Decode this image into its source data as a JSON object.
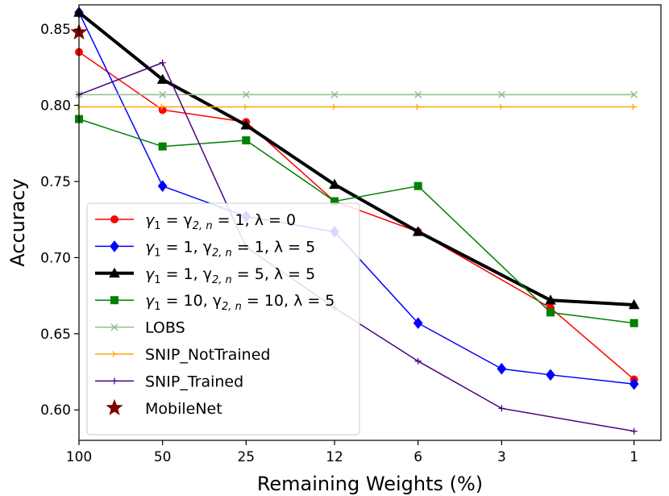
{
  "chart_data": {
    "type": "line",
    "title": "",
    "xlabel": "Remaining Weights (%)",
    "ylabel": "Accuracy",
    "x_scale": "log",
    "x_reversed": true,
    "xlim": [
      0.8,
      100
    ],
    "ylim": [
      0.58,
      0.866
    ],
    "x_ticks": [
      100,
      50,
      25,
      12,
      6,
      3,
      1
    ],
    "x_tick_labels": [
      "100",
      "50",
      "25",
      "12",
      "6",
      "3",
      "1"
    ],
    "y_ticks": [
      0.6,
      0.65,
      0.7,
      0.75,
      0.8,
      0.85
    ],
    "y_tick_labels": [
      "0.60",
      "0.65",
      "0.70",
      "0.75",
      "0.80",
      "0.85"
    ],
    "grid": false,
    "legend_position": "lower-left",
    "series": [
      {
        "name": "γ1 = γ2,n = 1, λ = 0",
        "color": "#ff0000",
        "marker": "circle",
        "line_width": 1.5,
        "x": [
          100,
          50,
          25,
          12,
          6,
          2,
          1
        ],
        "y": [
          0.835,
          0.797,
          0.789,
          0.737,
          0.717,
          0.667,
          0.62
        ]
      },
      {
        "name": "γ1 = 1, γ2,n = 1, λ = 5",
        "color": "#0000ff",
        "marker": "diamond",
        "line_width": 1.5,
        "x": [
          100,
          50,
          25,
          12,
          6,
          3,
          2,
          1
        ],
        "y": [
          0.861,
          0.747,
          0.727,
          0.717,
          0.657,
          0.627,
          0.623,
          0.617
        ]
      },
      {
        "name": "γ1 = 1, γ2,n = 5, λ = 5",
        "color": "#000000",
        "marker": "triangle",
        "line_width": 4,
        "x": [
          100,
          50,
          25,
          12,
          6,
          2,
          1
        ],
        "y": [
          0.861,
          0.817,
          0.787,
          0.748,
          0.717,
          0.672,
          0.669
        ]
      },
      {
        "name": "γ1 = 10, γ2,n = 10, λ = 5",
        "color": "#008000",
        "marker": "square",
        "line_width": 1.5,
        "x": [
          100,
          50,
          25,
          12,
          6,
          2,
          1
        ],
        "y": [
          0.791,
          0.773,
          0.777,
          0.737,
          0.747,
          0.664,
          0.657
        ]
      },
      {
        "name": "LOBS",
        "color": "#8fbc8f",
        "marker": "x",
        "line_width": 1.5,
        "x": [
          100,
          50,
          25,
          12,
          6,
          3,
          1
        ],
        "y": [
          0.807,
          0.807,
          0.807,
          0.807,
          0.807,
          0.807,
          0.807
        ]
      },
      {
        "name": "SNIP_NotTrained",
        "color": "#ffa500",
        "marker": "tri-right",
        "line_width": 1.5,
        "x": [
          100,
          50,
          25,
          12,
          6,
          3,
          1
        ],
        "y": [
          0.799,
          0.799,
          0.799,
          0.799,
          0.799,
          0.799,
          0.799
        ]
      },
      {
        "name": "SNIP_Trained",
        "color": "#4b0082",
        "marker": "plus",
        "line_width": 1.5,
        "x": [
          100,
          50,
          25,
          12,
          6,
          3,
          1
        ],
        "y": [
          0.807,
          0.828,
          0.707,
          0.667,
          0.632,
          0.601,
          0.586
        ]
      },
      {
        "name": "MobileNet",
        "color": "#800000",
        "marker": "star",
        "line_width": 0,
        "x": [
          100
        ],
        "y": [
          0.848
        ]
      }
    ]
  },
  "legend_items": [
    {
      "pre": "γ",
      "sub1": "1",
      "mid1": " = γ",
      "sub2": "2, n",
      "post": " = 1, λ = 0"
    },
    {
      "pre": "γ",
      "sub1": "1",
      "mid1": " = 1, γ",
      "sub2": "2, n",
      "post": " = 1, λ = 5"
    },
    {
      "pre": "γ",
      "sub1": "1",
      "mid1": " = 1, γ",
      "sub2": "2, n",
      "post": " = 5, λ = 5"
    },
    {
      "pre": "γ",
      "sub1": "1",
      "mid1": " = 10, γ",
      "sub2": "2, n",
      "post": " = 10, λ = 5"
    },
    {
      "text": "LOBS"
    },
    {
      "text": "SNIP_NotTrained"
    },
    {
      "text": "SNIP_Trained"
    },
    {
      "text": "MobileNet"
    }
  ]
}
